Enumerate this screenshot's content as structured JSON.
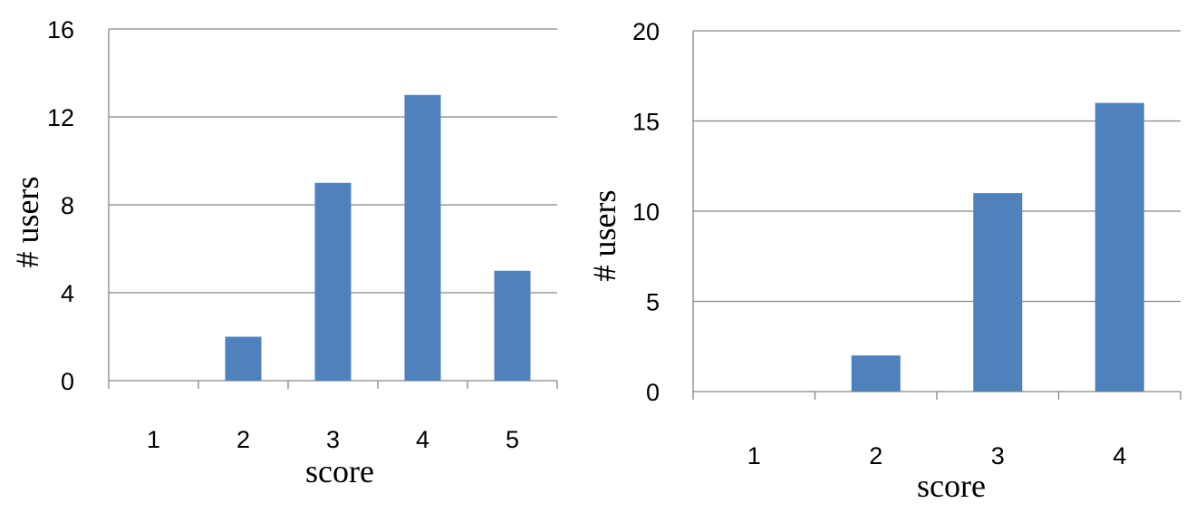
{
  "chart_data": [
    {
      "type": "bar",
      "categories": [
        "1",
        "2",
        "3",
        "4",
        "5"
      ],
      "values": [
        0,
        2,
        9,
        13,
        5
      ],
      "xlabel": "score",
      "ylabel": "# users",
      "ylim": [
        0,
        16
      ],
      "yticks": [
        "0",
        "4",
        "8",
        "12",
        "16"
      ],
      "grid": true,
      "bar_color": "#4F81BD",
      "grid_color": "#868686"
    },
    {
      "type": "bar",
      "categories": [
        "1",
        "2",
        "3",
        "4"
      ],
      "values": [
        0,
        2,
        11,
        16
      ],
      "xlabel": "score",
      "ylabel": "# users",
      "ylim": [
        0,
        20
      ],
      "yticks": [
        "0",
        "5",
        "10",
        "15",
        "20"
      ],
      "grid": true,
      "bar_color": "#4F81BD",
      "grid_color": "#868686"
    }
  ]
}
